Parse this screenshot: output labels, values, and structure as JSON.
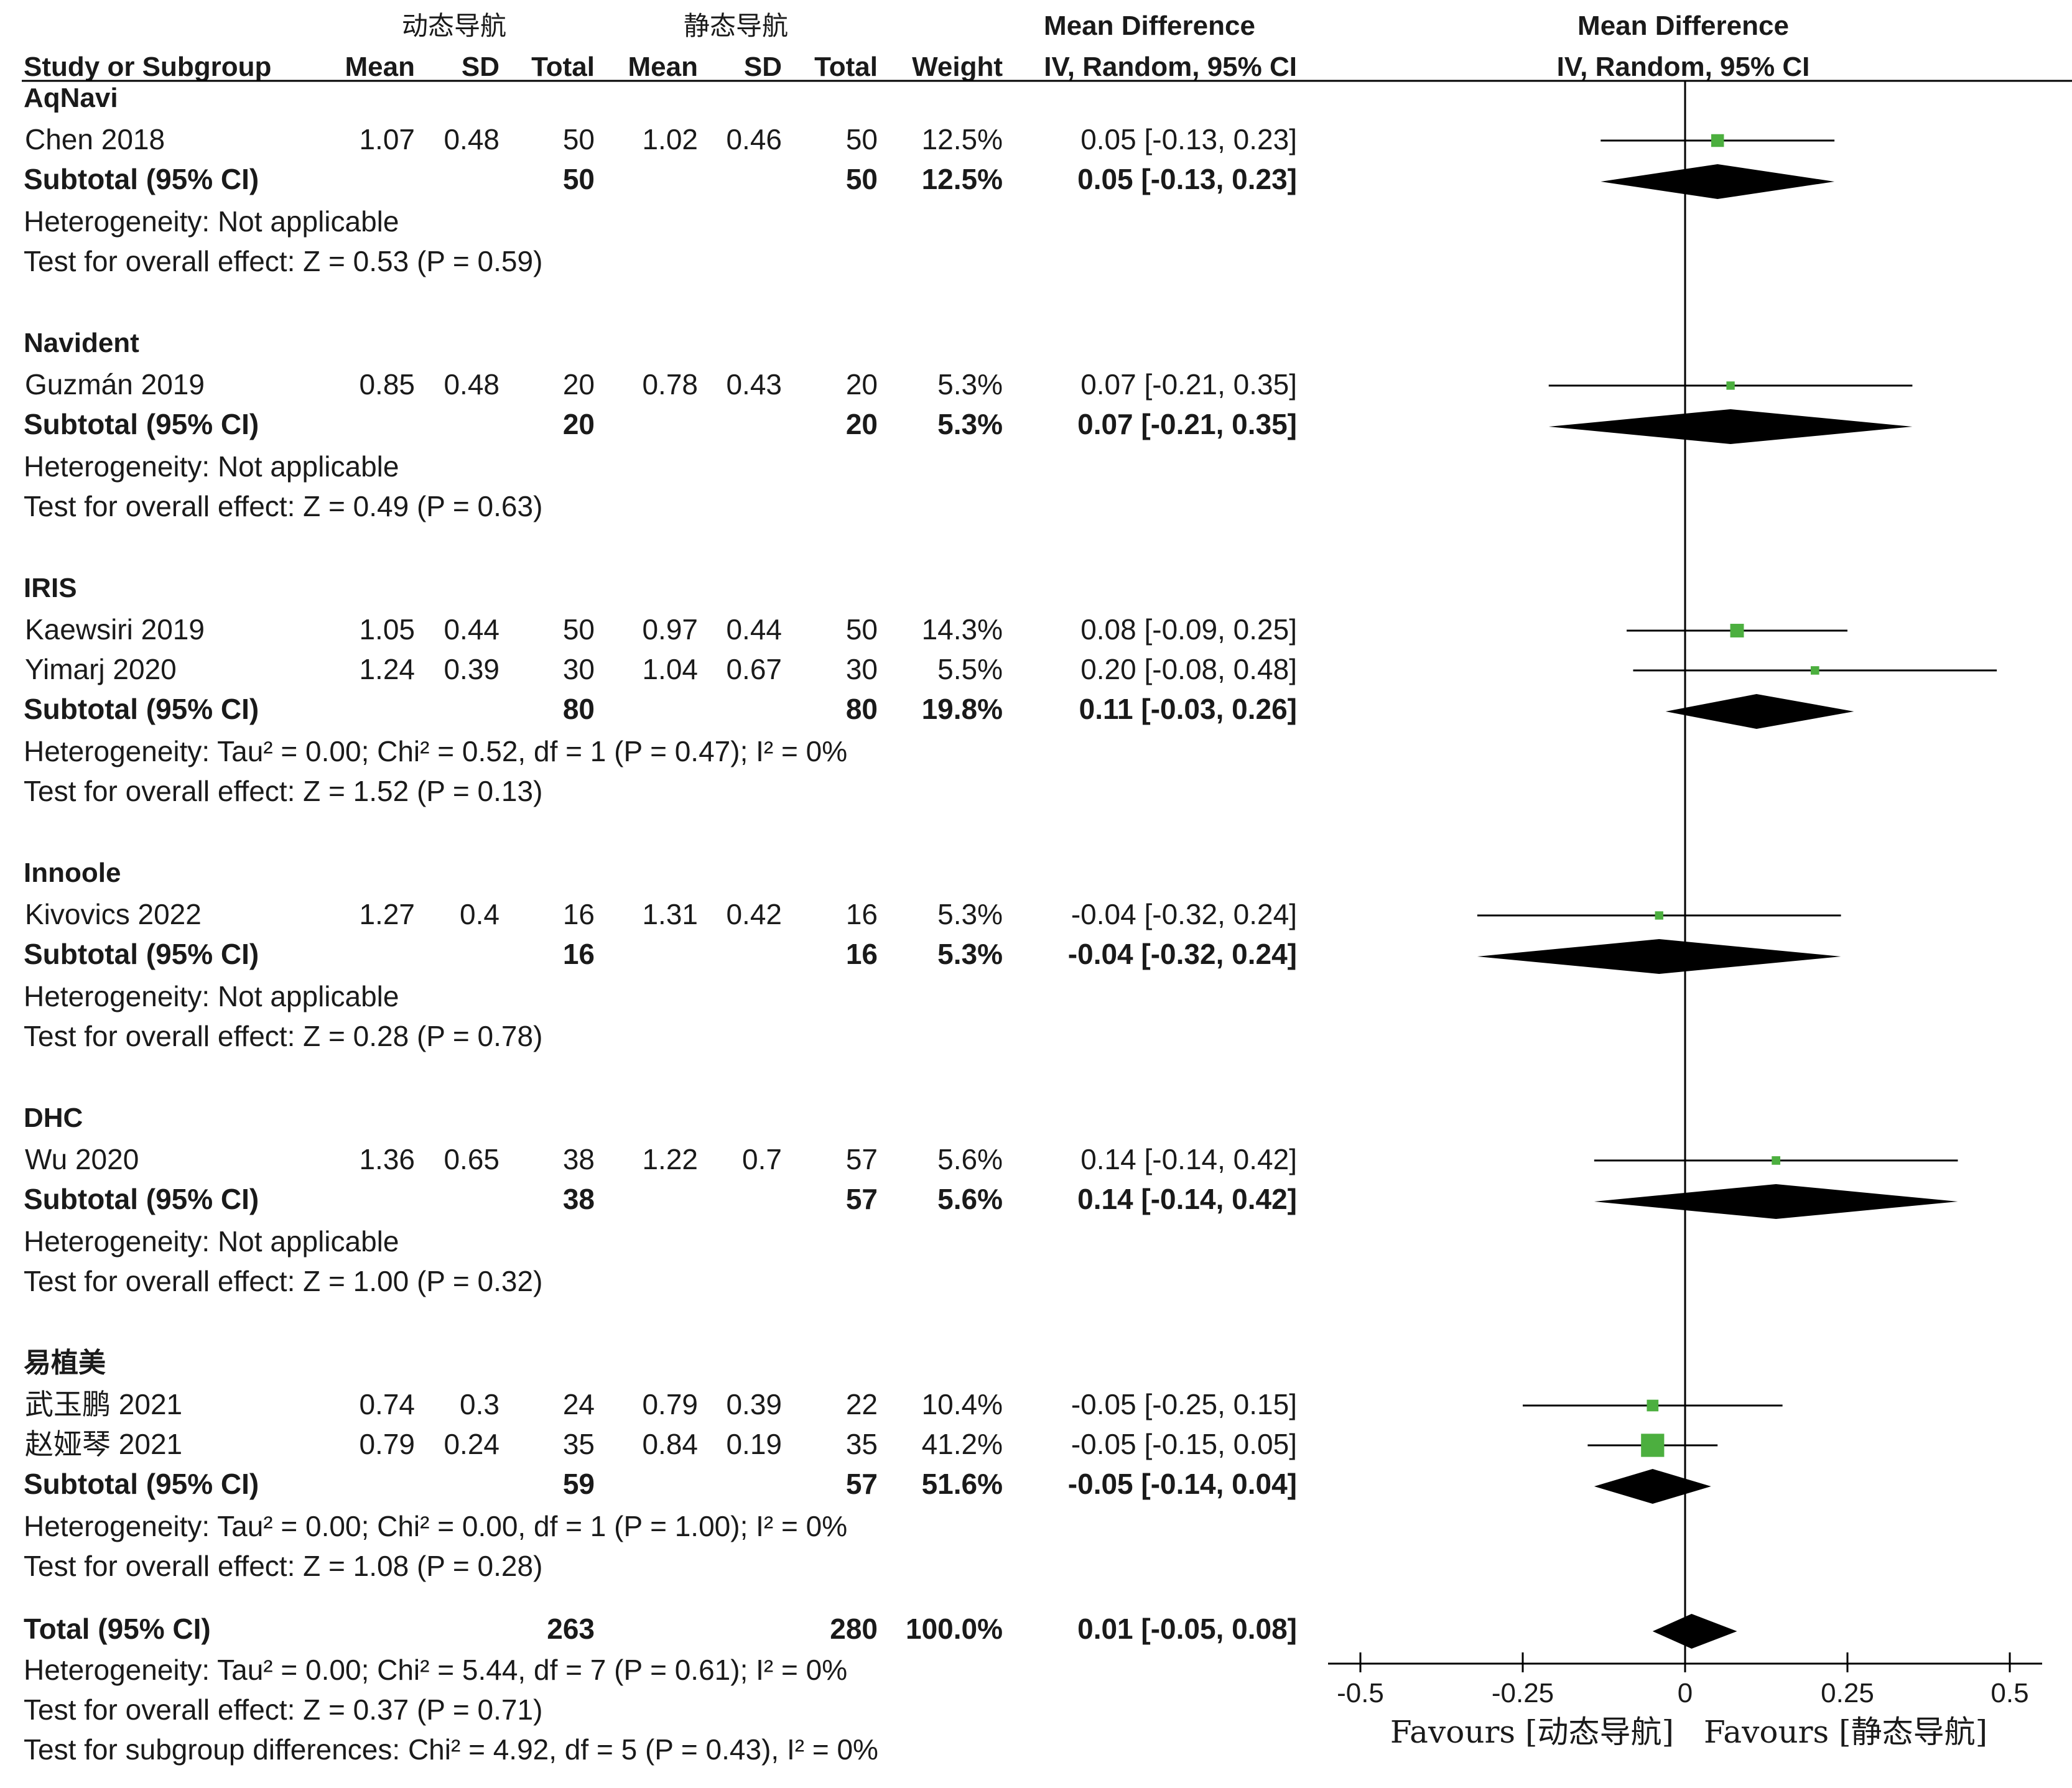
{
  "header": {
    "group1": "动态导航",
    "group2": "静态导航",
    "columns": {
      "study": "Study or Subgroup",
      "mean1": "Mean",
      "sd1": "SD",
      "total1": "Total",
      "mean2": "Mean",
      "sd2": "SD",
      "total2": "Total",
      "weight": "Weight",
      "ci_title": "Mean Difference",
      "ci_sub": "IV, Random, 95% CI",
      "plot_title": "Mean Difference",
      "plot_sub": "IV, Random, 95% CI"
    }
  },
  "chart_data": {
    "type": "forest",
    "x_axis": {
      "min": -0.5,
      "max": 0.5,
      "ticks": [
        -0.5,
        -0.25,
        0,
        0.25,
        0.5
      ],
      "tick_labels": [
        "-0.5",
        "-0.25",
        "0",
        "0.25",
        "0.5"
      ],
      "favours_left": "Favours [动态导航]",
      "favours_right": "Favours [静态导航]"
    },
    "colors": {
      "study_marker": "#4caf3f",
      "diamond": "#000000",
      "line": "#000000"
    },
    "subgroups": [
      {
        "name": "AqNavi",
        "studies": [
          {
            "study": "Chen 2018",
            "mean1": "1.07",
            "sd1": "0.48",
            "total1": "50",
            "mean2": "1.02",
            "sd2": "0.46",
            "total2": "50",
            "weight": "12.5%",
            "ci_text": "0.05 [-0.13, 0.23]",
            "md": 0.05,
            "lo": -0.13,
            "hi": 0.23,
            "w": 12.5
          }
        ],
        "subtotal": {
          "label": "Subtotal (95% CI)",
          "total1": "50",
          "total2": "50",
          "weight": "12.5%",
          "ci_text": "0.05 [-0.13, 0.23]",
          "md": 0.05,
          "lo": -0.13,
          "hi": 0.23
        },
        "heterogeneity": "Heterogeneity: Not applicable",
        "overall": "Test for overall effect: Z = 0.53 (P = 0.59)"
      },
      {
        "name": "Navident",
        "studies": [
          {
            "study": "Guzmán 2019",
            "mean1": "0.85",
            "sd1": "0.48",
            "total1": "20",
            "mean2": "0.78",
            "sd2": "0.43",
            "total2": "20",
            "weight": "5.3%",
            "ci_text": "0.07 [-0.21, 0.35]",
            "md": 0.07,
            "lo": -0.21,
            "hi": 0.35,
            "w": 5.3
          }
        ],
        "subtotal": {
          "label": "Subtotal (95% CI)",
          "total1": "20",
          "total2": "20",
          "weight": "5.3%",
          "ci_text": "0.07 [-0.21, 0.35]",
          "md": 0.07,
          "lo": -0.21,
          "hi": 0.35
        },
        "heterogeneity": "Heterogeneity: Not applicable",
        "overall": "Test for overall effect: Z = 0.49 (P = 0.63)"
      },
      {
        "name": "IRIS",
        "studies": [
          {
            "study": "Kaewsiri 2019",
            "mean1": "1.05",
            "sd1": "0.44",
            "total1": "50",
            "mean2": "0.97",
            "sd2": "0.44",
            "total2": "50",
            "weight": "14.3%",
            "ci_text": "0.08 [-0.09, 0.25]",
            "md": 0.08,
            "lo": -0.09,
            "hi": 0.25,
            "w": 14.3
          },
          {
            "study": "Yimarj  2020",
            "mean1": "1.24",
            "sd1": "0.39",
            "total1": "30",
            "mean2": "1.04",
            "sd2": "0.67",
            "total2": "30",
            "weight": "5.5%",
            "ci_text": "0.20 [-0.08, 0.48]",
            "md": 0.2,
            "lo": -0.08,
            "hi": 0.48,
            "w": 5.5
          }
        ],
        "subtotal": {
          "label": "Subtotal (95% CI)",
          "total1": "80",
          "total2": "80",
          "weight": "19.8%",
          "ci_text": "0.11 [-0.03, 0.26]",
          "md": 0.11,
          "lo": -0.03,
          "hi": 0.26
        },
        "heterogeneity": "Heterogeneity: Tau² = 0.00; Chi² = 0.52, df = 1 (P = 0.47); I² = 0%",
        "overall": "Test for overall effect: Z = 1.52 (P = 0.13)"
      },
      {
        "name": "Innoole",
        "studies": [
          {
            "study": "Kivovics 2022",
            "mean1": "1.27",
            "sd1": "0.4",
            "total1": "16",
            "mean2": "1.31",
            "sd2": "0.42",
            "total2": "16",
            "weight": "5.3%",
            "ci_text": "-0.04 [-0.32, 0.24]",
            "md": -0.04,
            "lo": -0.32,
            "hi": 0.24,
            "w": 5.3
          }
        ],
        "subtotal": {
          "label": "Subtotal (95% CI)",
          "total1": "16",
          "total2": "16",
          "weight": "5.3%",
          "ci_text": "-0.04 [-0.32, 0.24]",
          "md": -0.04,
          "lo": -0.32,
          "hi": 0.24
        },
        "heterogeneity": "Heterogeneity: Not applicable",
        "overall": "Test for overall effect: Z = 0.28 (P = 0.78)"
      },
      {
        "name": "DHC",
        "studies": [
          {
            "study": "Wu 2020",
            "mean1": "1.36",
            "sd1": "0.65",
            "total1": "38",
            "mean2": "1.22",
            "sd2": "0.7",
            "total2": "57",
            "weight": "5.6%",
            "ci_text": "0.14 [-0.14, 0.42]",
            "md": 0.14,
            "lo": -0.14,
            "hi": 0.42,
            "w": 5.6
          }
        ],
        "subtotal": {
          "label": "Subtotal (95% CI)",
          "total1": "38",
          "total2": "57",
          "weight": "5.6%",
          "ci_text": "0.14 [-0.14, 0.42]",
          "md": 0.14,
          "lo": -0.14,
          "hi": 0.42
        },
        "heterogeneity": "Heterogeneity: Not applicable",
        "overall": "Test for overall effect: Z = 1.00 (P = 0.32)"
      },
      {
        "name": "易植美",
        "studies": [
          {
            "study": "武玉鹏 2021",
            "mean1": "0.74",
            "sd1": "0.3",
            "total1": "24",
            "mean2": "0.79",
            "sd2": "0.39",
            "total2": "22",
            "weight": "10.4%",
            "ci_text": "-0.05 [-0.25, 0.15]",
            "md": -0.05,
            "lo": -0.25,
            "hi": 0.15,
            "w": 10.4
          },
          {
            "study": "赵娅琴 2021",
            "mean1": "0.79",
            "sd1": "0.24",
            "total1": "35",
            "mean2": "0.84",
            "sd2": "0.19",
            "total2": "35",
            "weight": "41.2%",
            "ci_text": "-0.05 [-0.15, 0.05]",
            "md": -0.05,
            "lo": -0.15,
            "hi": 0.05,
            "w": 41.2
          }
        ],
        "subtotal": {
          "label": "Subtotal (95% CI)",
          "total1": "59",
          "total2": "57",
          "weight": "51.6%",
          "ci_text": "-0.05 [-0.14, 0.04]",
          "md": -0.05,
          "lo": -0.14,
          "hi": 0.04
        },
        "heterogeneity": "Heterogeneity: Tau² = 0.00; Chi² = 0.00, df = 1 (P = 1.00); I² = 0%",
        "overall": "Test for overall effect: Z = 1.08 (P = 0.28)"
      }
    ],
    "total": {
      "label": "Total (95% CI)",
      "total1": "263",
      "total2": "280",
      "weight": "100.0%",
      "ci_text": "0.01 [-0.05, 0.08]",
      "md": 0.01,
      "lo": -0.05,
      "hi": 0.08,
      "heterogeneity": "Heterogeneity: Tau² = 0.00; Chi² = 5.44, df = 7 (P = 0.61); I² = 0%",
      "overall": "Test for overall effect: Z = 0.37 (P = 0.71)",
      "subgroup_diff": "Test for subgroup differences: Chi² = 4.92, df = 5 (P = 0.43), I² = 0%"
    }
  }
}
